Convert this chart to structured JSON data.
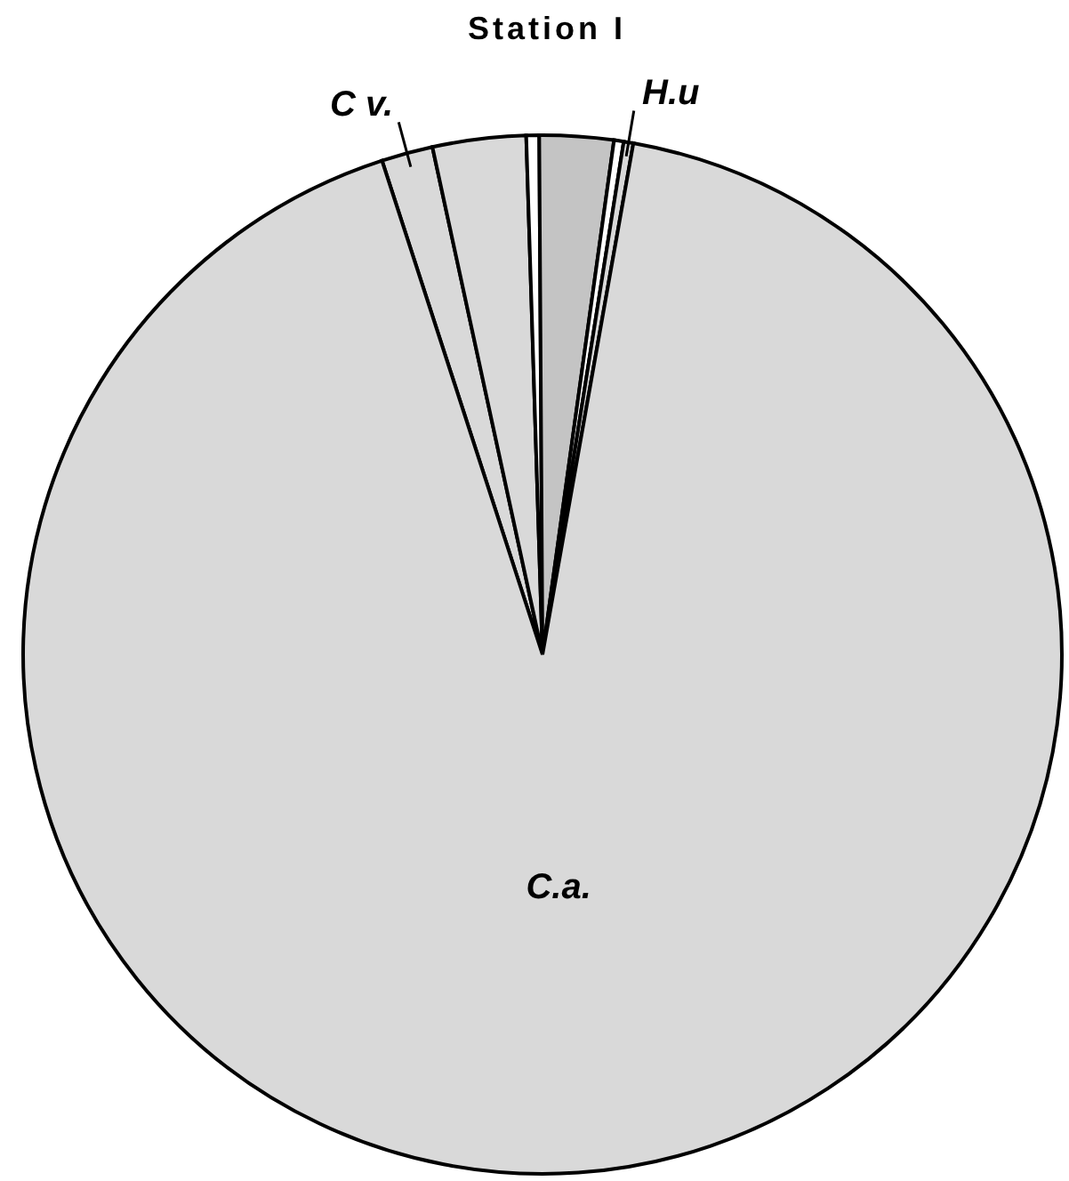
{
  "chart_data": {
    "type": "pie",
    "title": "Station I",
    "categories": [
      "C v.",
      null,
      null,
      null,
      null,
      "H.u",
      "C.a."
    ],
    "values": [
      1.6,
      2.9,
      0.4,
      2.3,
      0.3,
      0.3,
      92.2
    ],
    "colors": [
      "#d9d9d9",
      "#d9d9d9",
      "#ffffff",
      "#c4c4c4",
      "#ffffff",
      "#d9d9d9",
      "#d9d9d9"
    ]
  }
}
